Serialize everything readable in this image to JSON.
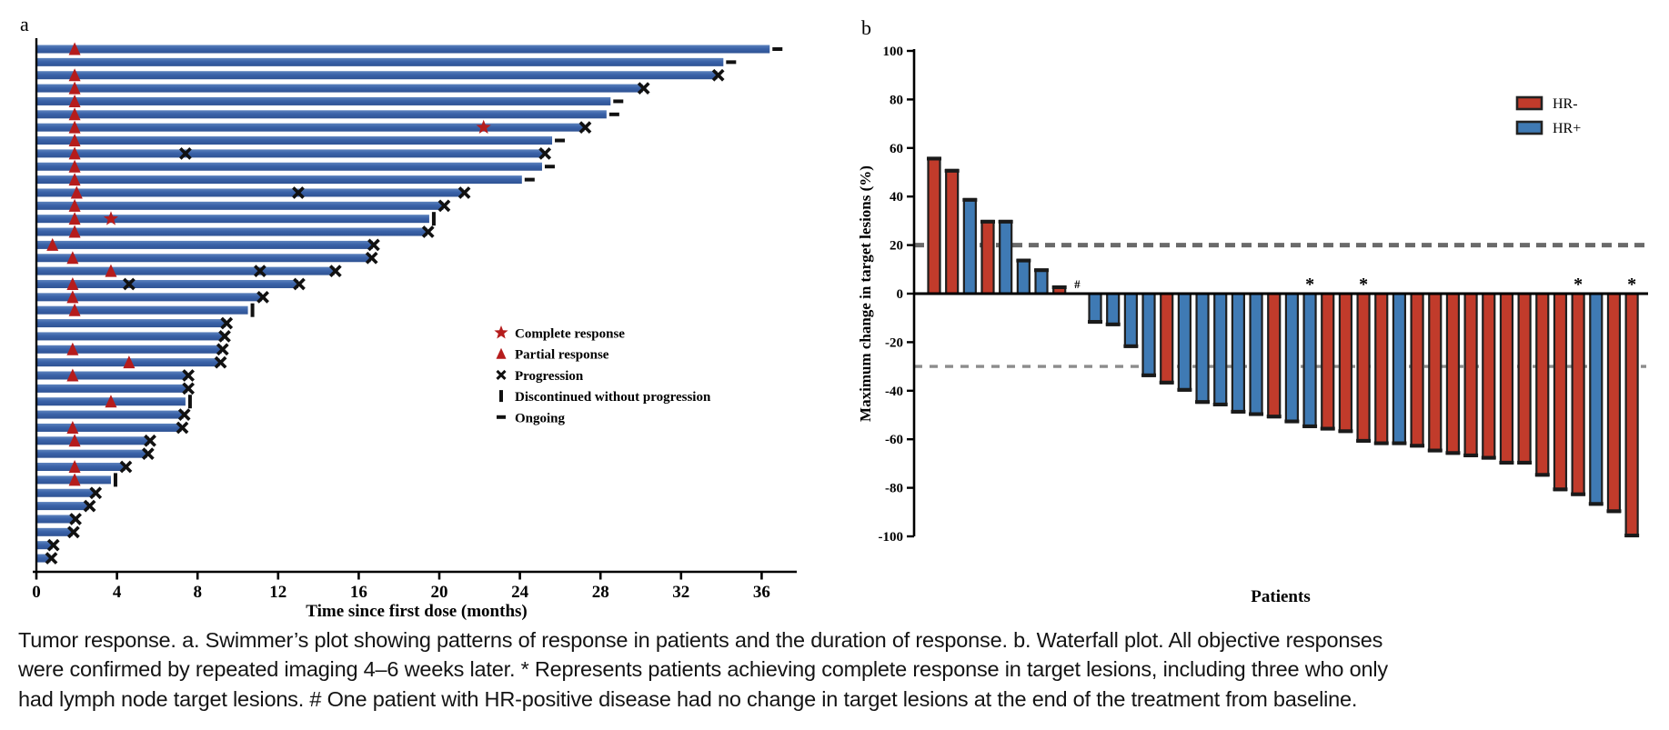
{
  "caption": "Tumor response. a. Swimmer’s plot showing patterns of response in patients and the duration of response. b. Waterfall plot. All objective responses were confirmed by repeated imaging 4–6 weeks later. * Represents patients achieving complete response in target lesions, including three who only had lymph node target lesions. # One patient with HR-positive disease had no change in target lesions at the end of the treatment from baseline.",
  "chart_data": [
    {
      "type": "swimmer",
      "panel_label": "a",
      "xlabel": "Time since first dose (months)",
      "xlim": [
        0,
        37.5
      ],
      "xticks": [
        0,
        4,
        8,
        12,
        16,
        20,
        24,
        28,
        32,
        36
      ],
      "bar_color": "#3a62a8",
      "marker_color_response": "#b51c1c",
      "marker_color_event": "#111111",
      "legend": [
        {
          "symbol": "star",
          "label": "Complete response"
        },
        {
          "symbol": "triangle",
          "label": "Partial response"
        },
        {
          "symbol": "x",
          "label": "Progression"
        },
        {
          "symbol": "vbar",
          "label": "Discontinued without progression"
        },
        {
          "symbol": "dash",
          "label": "Ongoing"
        }
      ],
      "patients": [
        {
          "months": 36.4,
          "partial_response_at": 1.9,
          "end": "ongoing"
        },
        {
          "months": 34.1,
          "end": "ongoing"
        },
        {
          "months": 33.8,
          "partial_response_at": 1.9,
          "end": "progression"
        },
        {
          "months": 30.1,
          "partial_response_at": 1.9,
          "end": "progression"
        },
        {
          "months": 28.5,
          "partial_response_at": 1.9,
          "end": "ongoing"
        },
        {
          "months": 28.3,
          "partial_response_at": 1.9,
          "end": "ongoing"
        },
        {
          "months": 27.2,
          "partial_response_at": 1.9,
          "complete_response_at": 22.2,
          "end": "progression"
        },
        {
          "months": 25.6,
          "partial_response_at": 1.9,
          "end": "ongoing"
        },
        {
          "months": 25.2,
          "partial_response_at": 1.9,
          "progression_at": [
            7.4
          ],
          "end": "progression"
        },
        {
          "months": 25.1,
          "partial_response_at": 1.9,
          "end": "ongoing"
        },
        {
          "months": 24.1,
          "partial_response_at": 1.9,
          "end": "ongoing"
        },
        {
          "months": 21.2,
          "partial_response_at": 2.0,
          "progression_at": [
            13.0
          ],
          "end": "progression"
        },
        {
          "months": 20.2,
          "partial_response_at": 1.9,
          "end": "progression"
        },
        {
          "months": 19.5,
          "partial_response_at": 1.9,
          "complete_response_at": 3.7,
          "end": "discontinued"
        },
        {
          "months": 19.4,
          "partial_response_at": 1.9,
          "end": "progression"
        },
        {
          "months": 16.7,
          "partial_response_at": 0.8,
          "end": "progression"
        },
        {
          "months": 16.6,
          "partial_response_at": 1.8,
          "end": "progression"
        },
        {
          "months": 14.8,
          "partial_response_at": 3.7,
          "progression_at": [
            11.1
          ],
          "end": "progression"
        },
        {
          "months": 13.0,
          "partial_response_at": 1.8,
          "progression_at": [
            4.6
          ],
          "end": "progression"
        },
        {
          "months": 11.2,
          "partial_response_at": 1.8,
          "end": "progression"
        },
        {
          "months": 10.5,
          "partial_response_at": 1.9,
          "end": "discontinued"
        },
        {
          "months": 9.4,
          "end": "progression"
        },
        {
          "months": 9.3,
          "end": "progression"
        },
        {
          "months": 9.2,
          "partial_response_at": 1.8,
          "end": "progression"
        },
        {
          "months": 9.1,
          "partial_response_at": 4.6,
          "end": "progression"
        },
        {
          "months": 7.5,
          "partial_response_at": 1.8,
          "end": "progression"
        },
        {
          "months": 7.5,
          "end": "progression"
        },
        {
          "months": 7.4,
          "partial_response_at": 3.7,
          "end": "discontinued"
        },
        {
          "months": 7.3,
          "end": "progression"
        },
        {
          "months": 7.2,
          "partial_response_at": 1.8,
          "end": "progression"
        },
        {
          "months": 5.6,
          "partial_response_at": 1.9,
          "end": "progression"
        },
        {
          "months": 5.5,
          "end": "progression"
        },
        {
          "months": 4.4,
          "partial_response_at": 1.9,
          "end": "progression"
        },
        {
          "months": 3.7,
          "partial_response_at": 1.9,
          "end": "discontinued"
        },
        {
          "months": 2.9,
          "end": "progression"
        },
        {
          "months": 2.6,
          "end": "progression"
        },
        {
          "months": 1.9,
          "end": "progression"
        },
        {
          "months": 1.8,
          "end": "progression"
        },
        {
          "months": 0.8,
          "end": "progression"
        },
        {
          "months": 0.7,
          "end": "progression"
        }
      ]
    },
    {
      "type": "waterfall",
      "panel_label": "b",
      "ylabel": "Maximum change in target lesions (%)",
      "xlabel": "Patients",
      "ylim": [
        -100,
        100
      ],
      "yticks": [
        100,
        80,
        60,
        40,
        20,
        0,
        -20,
        -40,
        -60,
        -80,
        -100
      ],
      "reference_lines": [
        20,
        -30
      ],
      "grid": false,
      "legend_position": "top-right",
      "legend": [
        {
          "label": "HR-",
          "color": "#c13b2b"
        },
        {
          "label": "HR+",
          "color": "#3f7ab4"
        }
      ],
      "bars": [
        {
          "value": 56,
          "group": "HR-"
        },
        {
          "value": 51,
          "group": "HR-"
        },
        {
          "value": 39,
          "group": "HR+"
        },
        {
          "value": 30,
          "group": "HR-"
        },
        {
          "value": 30,
          "group": "HR+"
        },
        {
          "value": 14,
          "group": "HR+"
        },
        {
          "value": 10,
          "group": "HR+"
        },
        {
          "value": 3,
          "group": "HR-"
        },
        {
          "value": 0,
          "group": "HR+",
          "annotation": "#"
        },
        {
          "value": -12,
          "group": "HR+"
        },
        {
          "value": -13,
          "group": "HR+"
        },
        {
          "value": -22,
          "group": "HR+"
        },
        {
          "value": -34,
          "group": "HR+"
        },
        {
          "value": -37,
          "group": "HR-"
        },
        {
          "value": -40,
          "group": "HR+"
        },
        {
          "value": -45,
          "group": "HR+"
        },
        {
          "value": -46,
          "group": "HR+"
        },
        {
          "value": -49,
          "group": "HR+"
        },
        {
          "value": -50,
          "group": "HR+"
        },
        {
          "value": -51,
          "group": "HR-"
        },
        {
          "value": -53,
          "group": "HR+"
        },
        {
          "value": -55,
          "group": "HR+",
          "annotation": "*"
        },
        {
          "value": -56,
          "group": "HR-"
        },
        {
          "value": -57,
          "group": "HR-"
        },
        {
          "value": -61,
          "group": "HR-",
          "annotation": "*"
        },
        {
          "value": -62,
          "group": "HR-"
        },
        {
          "value": -62,
          "group": "HR+"
        },
        {
          "value": -63,
          "group": "HR-"
        },
        {
          "value": -65,
          "group": "HR-"
        },
        {
          "value": -66,
          "group": "HR-"
        },
        {
          "value": -67,
          "group": "HR-"
        },
        {
          "value": -68,
          "group": "HR-"
        },
        {
          "value": -70,
          "group": "HR-"
        },
        {
          "value": -70,
          "group": "HR-"
        },
        {
          "value": -75,
          "group": "HR-"
        },
        {
          "value": -81,
          "group": "HR-"
        },
        {
          "value": -83,
          "group": "HR-",
          "annotation": "*"
        },
        {
          "value": -87,
          "group": "HR+"
        },
        {
          "value": -90,
          "group": "HR-"
        },
        {
          "value": -100,
          "group": "HR-",
          "annotation": "*"
        }
      ]
    }
  ]
}
